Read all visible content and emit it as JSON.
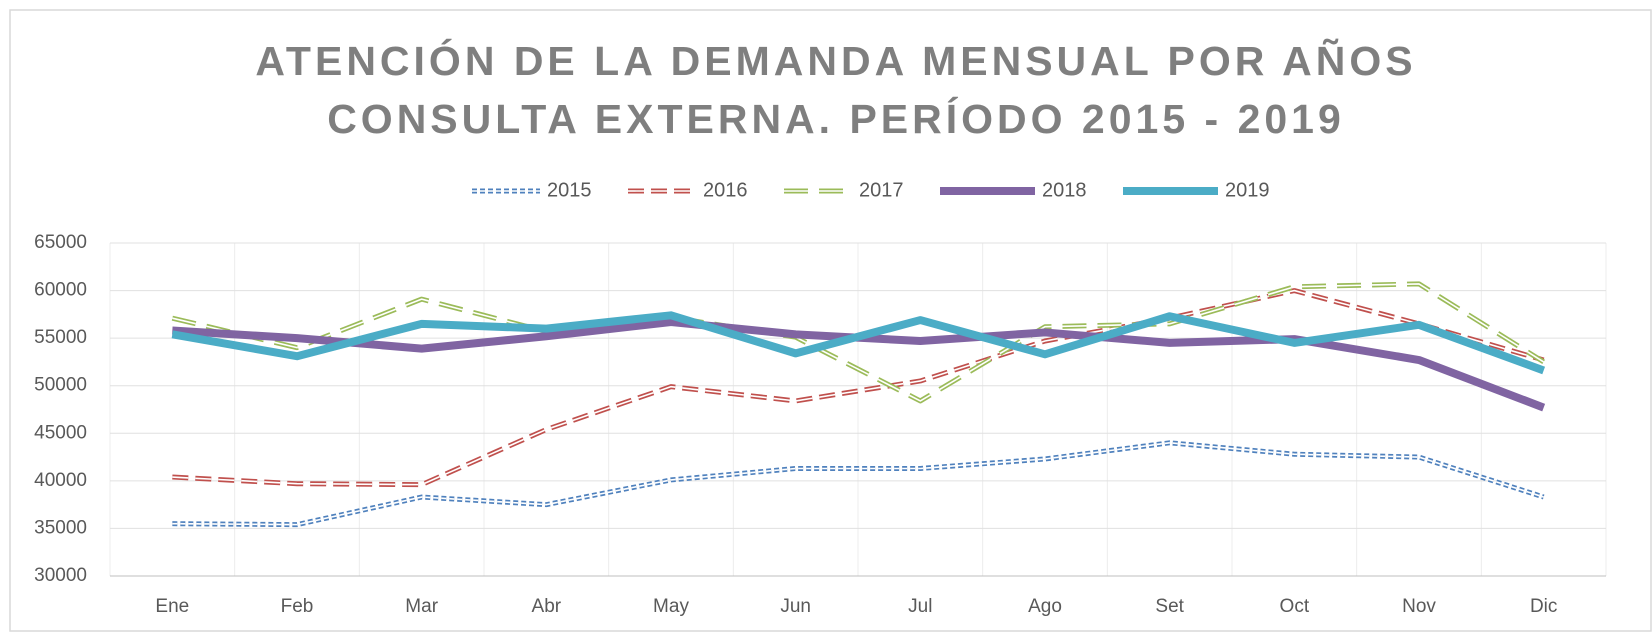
{
  "chart_data": {
    "type": "line",
    "title": "ATENCIÓN DE LA DEMANDA MENSUAL POR AÑOS",
    "subtitle": "CONSULTA EXTERNA. PERÍODO 2015 - 2019",
    "categories": [
      "Ene",
      "Feb",
      "Mar",
      "Abr",
      "May",
      "Jun",
      "Jul",
      "Ago",
      "Set",
      "Oct",
      "Nov",
      "Dic"
    ],
    "ylim": [
      30000,
      65000
    ],
    "yticks": [
      30000,
      35000,
      40000,
      45000,
      50000,
      55000,
      60000,
      65000
    ],
    "grid": true,
    "legend": "top",
    "series": [
      {
        "name": "2015",
        "color": "#4f81bd",
        "style": "dotted",
        "values": [
          35500,
          35400,
          38300,
          37500,
          40100,
          41300,
          41300,
          42300,
          44000,
          42800,
          42500,
          38300
        ]
      },
      {
        "name": "2016",
        "color": "#c0504d",
        "style": "dashed",
        "values": [
          40400,
          39700,
          39600,
          45400,
          49900,
          48400,
          50500,
          54700,
          57100,
          60000,
          56500,
          52700
        ]
      },
      {
        "name": "2017",
        "color": "#9bbb59",
        "style": "long-dashed",
        "values": [
          57100,
          54000,
          59100,
          55700,
          57200,
          55100,
          48400,
          56200,
          56500,
          60400,
          60700,
          52500
        ]
      },
      {
        "name": "2018",
        "color": "#8064a2",
        "style": "solid",
        "values": [
          55800,
          55000,
          53900,
          55200,
          56700,
          55400,
          54700,
          55600,
          54500,
          54900,
          52700,
          47700
        ]
      },
      {
        "name": "2019",
        "color": "#4bacc6",
        "style": "solid",
        "values": [
          55400,
          53100,
          56500,
          56000,
          57400,
          53400,
          56900,
          53300,
          57300,
          54500,
          56400,
          51600
        ]
      }
    ]
  }
}
